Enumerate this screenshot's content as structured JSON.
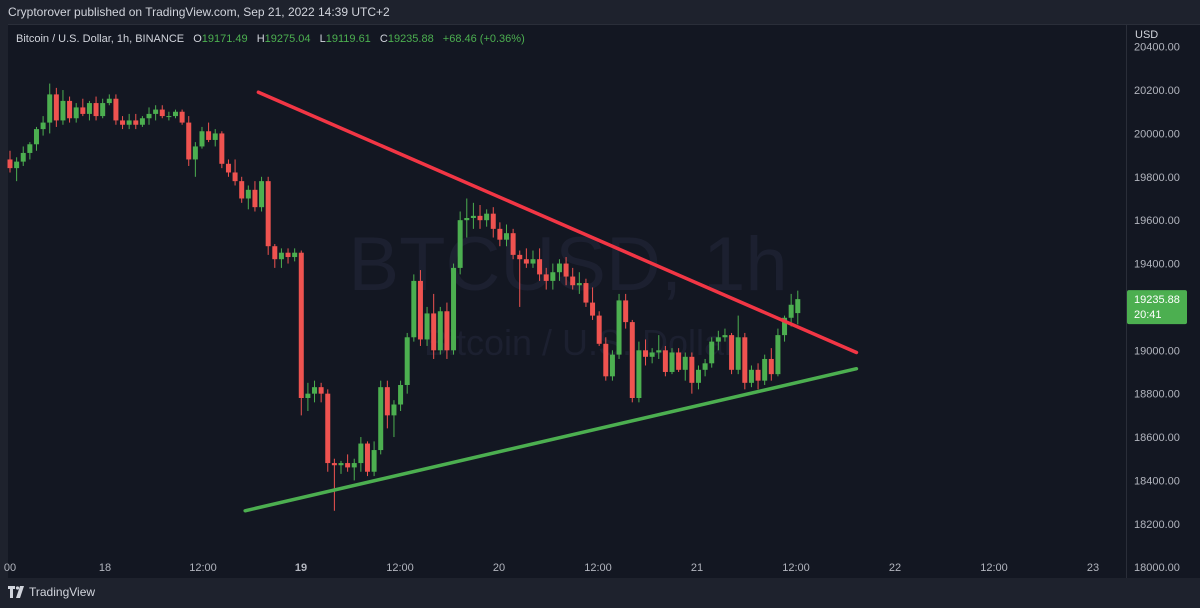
{
  "header": {
    "publisher_text": "Cryptorover published on TradingView.com, Sep 21, 2022 14:39 UTC+2"
  },
  "legend": {
    "symbol": "Bitcoin / U.S. Dollar, 1h, BINANCE",
    "open_label": "O",
    "open": "19171.49",
    "high_label": "H",
    "high": "19275.04",
    "low_label": "L",
    "low": "19119.61",
    "close_label": "C",
    "close": "19235.88",
    "change": "+68.46 (+0.36%)"
  },
  "watermark": {
    "symbol": "BTCUSD, 1h",
    "name": "Bitcoin / U.S. Dollar"
  },
  "price_axis": {
    "unit": "USD",
    "current_price": "19235.88",
    "countdown": "20:41"
  },
  "footer": {
    "logo_text": "TradingView"
  },
  "colors": {
    "up": "#26a69a",
    "up_candle": "#4caf50",
    "down": "#ef5350",
    "resistance": "#f23645",
    "support": "#4caf50",
    "background": "#131722"
  },
  "chart_data": {
    "type": "candlestick",
    "x_ticks": [
      "00",
      "18",
      "12:00",
      "19",
      "12:00",
      "20",
      "12:00",
      "21",
      "12:00",
      "22",
      "12:00",
      "23"
    ],
    "y_ticks": [
      "20400.00",
      "20200.00",
      "20000.00",
      "19800.00",
      "19600.00",
      "19400.00",
      "19200.00",
      "19000.00",
      "18800.00",
      "18600.00",
      "18400.00",
      "18200.00",
      "18000.00"
    ],
    "ylim": [
      17950,
      20500
    ],
    "candles": [
      [
        19880,
        19920,
        19820,
        19840
      ],
      [
        19840,
        19890,
        19780,
        19870
      ],
      [
        19870,
        19940,
        19850,
        19910
      ],
      [
        19910,
        19960,
        19880,
        19950
      ],
      [
        19950,
        20030,
        19920,
        20020
      ],
      [
        20020,
        20080,
        19990,
        20050
      ],
      [
        20050,
        20230,
        20000,
        20180
      ],
      [
        20180,
        20210,
        20030,
        20060
      ],
      [
        20060,
        20200,
        20040,
        20150
      ],
      [
        20150,
        20170,
        20050,
        20070
      ],
      [
        20070,
        20140,
        20050,
        20120
      ],
      [
        20120,
        20160,
        20080,
        20090
      ],
      [
        20090,
        20150,
        20060,
        20140
      ],
      [
        20140,
        20170,
        20060,
        20080
      ],
      [
        20080,
        20160,
        20070,
        20140
      ],
      [
        20140,
        20180,
        20130,
        20160
      ],
      [
        20160,
        20180,
        20040,
        20060
      ],
      [
        20060,
        20080,
        20020,
        20040
      ],
      [
        20040,
        20090,
        20020,
        20060
      ],
      [
        20060,
        20090,
        20020,
        20040
      ],
      [
        20040,
        20080,
        20030,
        20070
      ],
      [
        20070,
        20120,
        20040,
        20090
      ],
      [
        20090,
        20130,
        20060,
        20110
      ],
      [
        20110,
        20130,
        20070,
        20080
      ],
      [
        20080,
        20100,
        20060,
        20080
      ],
      [
        20080,
        20110,
        20070,
        20100
      ],
      [
        20100,
        20110,
        20040,
        20050
      ],
      [
        20050,
        20080,
        19850,
        19880
      ],
      [
        19880,
        19960,
        19800,
        19940
      ],
      [
        19940,
        20030,
        19930,
        20010
      ],
      [
        20010,
        20050,
        19960,
        19970
      ],
      [
        19970,
        20020,
        19940,
        20000
      ],
      [
        20000,
        20010,
        19840,
        19860
      ],
      [
        19860,
        19880,
        19800,
        19820
      ],
      [
        19820,
        19880,
        19760,
        19780
      ],
      [
        19780,
        19800,
        19680,
        19700
      ],
      [
        19700,
        19760,
        19650,
        19740
      ],
      [
        19740,
        19780,
        19640,
        19660
      ],
      [
        19660,
        19800,
        19640,
        19780
      ],
      [
        19780,
        19800,
        19440,
        19480
      ],
      [
        19480,
        19490,
        19380,
        19420
      ],
      [
        19420,
        19470,
        19380,
        19450
      ],
      [
        19450,
        19470,
        19400,
        19430
      ],
      [
        19430,
        19470,
        19410,
        19450
      ],
      [
        19450,
        19460,
        18700,
        18780
      ],
      [
        18780,
        18850,
        18720,
        18800
      ],
      [
        18800,
        18860,
        18760,
        18830
      ],
      [
        18830,
        18850,
        18760,
        18800
      ],
      [
        18800,
        18820,
        18440,
        18480
      ],
      [
        18480,
        18500,
        18260,
        18470
      ],
      [
        18470,
        18490,
        18430,
        18480
      ],
      [
        18480,
        18520,
        18440,
        18460
      ],
      [
        18460,
        18500,
        18400,
        18480
      ],
      [
        18480,
        18600,
        18440,
        18570
      ],
      [
        18570,
        18580,
        18420,
        18440
      ],
      [
        18440,
        18580,
        18420,
        18540
      ],
      [
        18540,
        18860,
        18520,
        18830
      ],
      [
        18830,
        18860,
        18640,
        18700
      ],
      [
        18700,
        18770,
        18600,
        18750
      ],
      [
        18750,
        18860,
        18720,
        18840
      ],
      [
        18840,
        19080,
        18800,
        19060
      ],
      [
        19060,
        19350,
        19040,
        19320
      ],
      [
        19320,
        19370,
        19020,
        19050
      ],
      [
        19050,
        19200,
        19020,
        19170
      ],
      [
        19170,
        19260,
        18960,
        19000
      ],
      [
        19000,
        19200,
        18980,
        19180
      ],
      [
        19180,
        19220,
        18960,
        19000
      ],
      [
        19000,
        19400,
        18980,
        19380
      ],
      [
        19380,
        19640,
        19350,
        19600
      ],
      [
        19600,
        19700,
        19520,
        19610
      ],
      [
        19610,
        19680,
        19560,
        19620
      ],
      [
        19620,
        19670,
        19560,
        19600
      ],
      [
        19600,
        19650,
        19570,
        19630
      ],
      [
        19630,
        19660,
        19520,
        19560
      ],
      [
        19560,
        19590,
        19480,
        19510
      ],
      [
        19510,
        19580,
        19480,
        19540
      ],
      [
        19540,
        19560,
        19420,
        19440
      ],
      [
        19440,
        19460,
        19200,
        19420
      ],
      [
        19420,
        19470,
        19380,
        19400
      ],
      [
        19400,
        19460,
        19380,
        19420
      ],
      [
        19420,
        19470,
        19320,
        19350
      ],
      [
        19350,
        19380,
        19280,
        19320
      ],
      [
        19320,
        19400,
        19280,
        19360
      ],
      [
        19360,
        19420,
        19320,
        19400
      ],
      [
        19400,
        19430,
        19300,
        19340
      ],
      [
        19340,
        19380,
        19280,
        19300
      ],
      [
        19300,
        19360,
        19260,
        19310
      ],
      [
        19310,
        19330,
        19200,
        19220
      ],
      [
        19220,
        19290,
        19140,
        19160
      ],
      [
        19160,
        19180,
        19020,
        19030
      ],
      [
        19030,
        19060,
        18860,
        18880
      ],
      [
        18880,
        19000,
        18860,
        18980
      ],
      [
        18980,
        19260,
        18960,
        19230
      ],
      [
        19230,
        19260,
        19100,
        19130
      ],
      [
        19130,
        19140,
        18760,
        18780
      ],
      [
        18780,
        19040,
        18760,
        19000
      ],
      [
        19000,
        19050,
        18930,
        18970
      ],
      [
        18970,
        19010,
        18940,
        18990
      ],
      [
        18990,
        19070,
        18960,
        19000
      ],
      [
        19000,
        19020,
        18880,
        18900
      ],
      [
        18900,
        19010,
        18890,
        18990
      ],
      [
        18990,
        19010,
        18900,
        18910
      ],
      [
        18910,
        18990,
        18860,
        18970
      ],
      [
        18970,
        18990,
        18800,
        18850
      ],
      [
        18850,
        18930,
        18820,
        18910
      ],
      [
        18910,
        18960,
        18880,
        18940
      ],
      [
        18940,
        19060,
        18920,
        19040
      ],
      [
        19040,
        19090,
        19000,
        19060
      ],
      [
        19060,
        19100,
        19040,
        19070
      ],
      [
        19070,
        19080,
        18890,
        18910
      ],
      [
        18910,
        19160,
        18890,
        19060
      ],
      [
        19060,
        19080,
        18820,
        18850
      ],
      [
        18850,
        18930,
        18830,
        18910
      ],
      [
        18910,
        18940,
        18820,
        18860
      ],
      [
        18860,
        18980,
        18840,
        18960
      ],
      [
        18960,
        19010,
        18860,
        18890
      ],
      [
        18890,
        19100,
        18880,
        19070
      ],
      [
        19070,
        19160,
        19040,
        19150
      ],
      [
        19150,
        19260,
        19110,
        19210
      ],
      [
        19171.49,
        19275.04,
        19119.61,
        19235.88
      ]
    ],
    "trendlines": [
      {
        "name": "resistance",
        "from": [
          20,
          20190
        ],
        "to": [
          133,
          18990
        ]
      },
      {
        "name": "support",
        "from": [
          18,
          18260
        ],
        "to": [
          133,
          18915
        ]
      }
    ]
  }
}
